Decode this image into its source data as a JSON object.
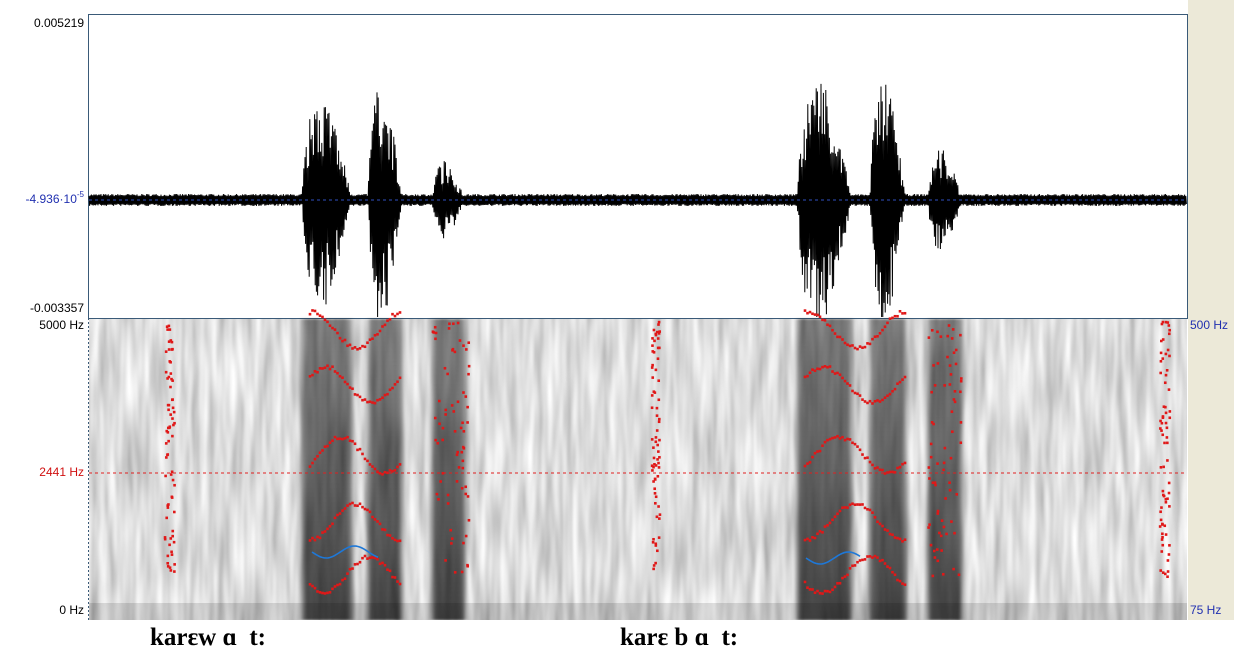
{
  "waveform": {
    "max_label": "0.005219",
    "center_label": {
      "mantissa": "-4.936·10",
      "exponent": "-5"
    },
    "min_label": "-0.003357"
  },
  "spectrogram": {
    "top_label": "5000 Hz",
    "cursor_label": "2441 Hz",
    "bottom_label": "0 Hz",
    "pitch_top_label": "500 Hz",
    "pitch_bottom_label": "75 Hz"
  },
  "transcriptions": [
    "karɛw ɑ  t:",
    "karɛ b ɑ  t:"
  ]
}
